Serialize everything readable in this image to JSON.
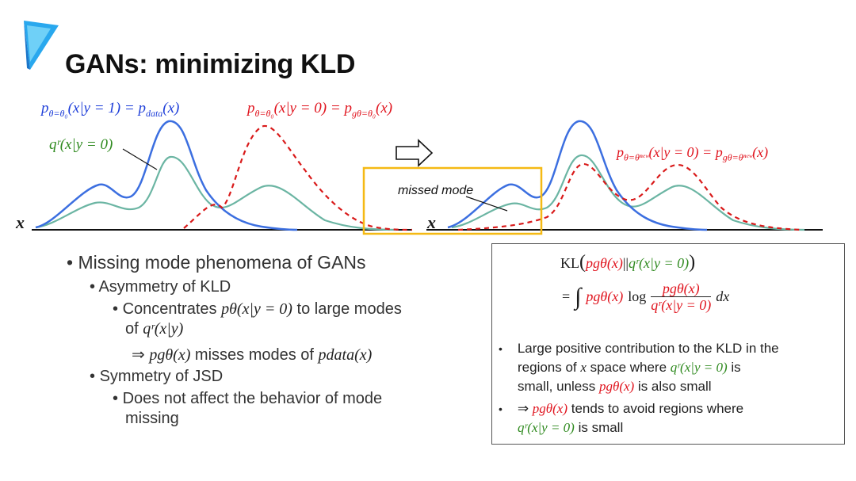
{
  "title": "GANs: minimizing KLD",
  "logo": {
    "icon": "blue-arrow-logo",
    "color": "#1fa2ea"
  },
  "colors": {
    "blue": "#1f3fd9",
    "red": "#e0141e",
    "green": "#2f8a1f",
    "teal": "#6bb5a3",
    "highlight": "#f5b914"
  },
  "left_plot": {
    "axis_label": "x",
    "blue_label": {
      "p": "p",
      "sub": "θ=θ₀",
      "args": "(x|y = 1) = ",
      "p2": "p",
      "sub2": "data",
      "args2": "(x)"
    },
    "red_label": {
      "p": "p",
      "sub": "θ=θ₀",
      "args": "(x|y = 0) = ",
      "p2": "p",
      "sub2": "gθ=θ₀",
      "args2": "(x)"
    },
    "green_label": "qʳ(x|y = 0)"
  },
  "right_plot": {
    "axis_label": "x",
    "red_label": {
      "p": "p",
      "sub": "θ=θⁿᵉʷ",
      "args": "(x|y = 0) = ",
      "p2": "p",
      "sub2": "gθ=θⁿᵉʷ",
      "args2": "(x)"
    },
    "missed_mode_label": "missed mode"
  },
  "arrow_icon": "right-arrow-icon",
  "bullets": {
    "b1": "Missing mode phenomena of GANs",
    "b2": "Asymmetry of KLD",
    "b3_pre": "Concentrates ",
    "b3_math": "pθ(x|y = 0)",
    "b3_post": " to large modes",
    "b3_line2_pre": "of ",
    "b3_line2_math": "qʳ(x|y)",
    "b4_arrow": "⇒",
    "b4_math": "pgθ(x)",
    "b4_mid": " misses modes of ",
    "b4_math2": "pdata(x)",
    "b5": "Symmetry of JSD",
    "b6_line1": "Does not affect the behavior of mode",
    "b6_line2": "missing"
  },
  "box": {
    "kl_prefix": "KL",
    "kl_p": "pgθ(x)",
    "kl_sep": "||",
    "kl_q": "qʳ(x|y = 0)",
    "eq_sign": "=",
    "integral": "∫",
    "eq_p": "pgθ(x)",
    "log": "log",
    "frac_num": "pgθ(x)",
    "frac_den": "qʳ(x|y = 0)",
    "dx": "dx",
    "point1_line1": "Large positive contribution to the KLD in the",
    "point1_line2_pre": "regions of ",
    "point1_line2_x": "x",
    "point1_line2_mid": " space where ",
    "point1_line2_q": "qʳ(x|y = 0)",
    "point1_line2_post": " is",
    "point1_line3_pre": "small, unless ",
    "point1_line3_p": "pgθ(x)",
    "point1_line3_post": " is also small",
    "point2_arrow": "⇒",
    "point2_p": "pgθ(x)",
    "point2_post": " tends to avoid regions where",
    "point2_line2_q": "qʳ(x|y = 0)",
    "point2_line2_post": " is small"
  }
}
